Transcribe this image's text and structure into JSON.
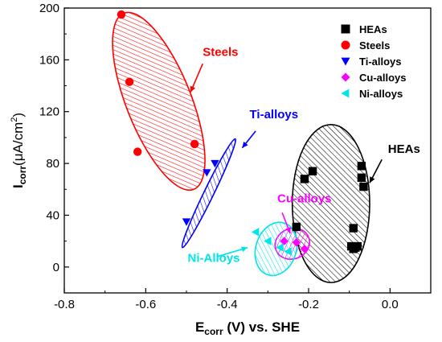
{
  "chart_data": {
    "type": "scatter",
    "xlabel": "E_corr (V) vs. SHE",
    "ylabel": "I_corr (μA/cm²)",
    "xlabel_parts": {
      "main": "E",
      "sub": "corr",
      "rest": " (V) vs. SHE"
    },
    "ylabel_parts": {
      "main": "I",
      "sub": "corr",
      "rest_a": "(μA/cm",
      "sup": "2",
      "rest_b": ")"
    },
    "xlim": [
      -0.8,
      0.1
    ],
    "ylim": [
      -20,
      200
    ],
    "xticks": [
      -0.8,
      -0.6,
      -0.4,
      -0.2,
      0.0
    ],
    "xtick_labels": [
      "-0.8",
      "-0.6",
      "-0.4",
      "-0.2",
      "0.0"
    ],
    "yticks": [
      0,
      40,
      80,
      120,
      160,
      200
    ],
    "ytick_labels": [
      "0",
      "40",
      "80",
      "120",
      "160",
      "200"
    ],
    "legend_position": "top-right",
    "series": [
      {
        "name": "HEAs",
        "marker": "square",
        "color": "#000000",
        "points": [
          [
            -0.19,
            74
          ],
          [
            -0.21,
            68
          ],
          [
            -0.07,
            78
          ],
          [
            -0.07,
            69
          ],
          [
            -0.065,
            62
          ],
          [
            -0.23,
            31
          ],
          [
            -0.09,
            30
          ],
          [
            -0.095,
            16
          ],
          [
            -0.09,
            14
          ],
          [
            -0.085,
            15
          ],
          [
            -0.08,
            16
          ]
        ]
      },
      {
        "name": "Steels",
        "marker": "circle",
        "color": "#ff0000",
        "points": [
          [
            -0.66,
            195
          ],
          [
            -0.64,
            143
          ],
          [
            -0.62,
            89
          ],
          [
            -0.48,
            95
          ]
        ]
      },
      {
        "name": "Ti-alloys",
        "marker": "triangle-down",
        "color": "#0000ff",
        "points": [
          [
            -0.5,
            35
          ],
          [
            -0.45,
            73
          ],
          [
            -0.43,
            80
          ]
        ]
      },
      {
        "name": "Cu-alloys",
        "marker": "diamond",
        "color": "#ff00ff",
        "points": [
          [
            -0.26,
            20
          ],
          [
            -0.23,
            19
          ],
          [
            -0.21,
            14
          ]
        ]
      },
      {
        "name": "Ni-alloys",
        "marker": "triangle-left",
        "color": "#00e5e5",
        "points": [
          [
            -0.33,
            27
          ],
          [
            -0.3,
            20
          ],
          [
            -0.27,
            15
          ],
          [
            -0.25,
            12
          ]
        ]
      }
    ],
    "regions": [
      {
        "label": "Steels",
        "color": "#ff0000",
        "center": [
          -0.568,
          128
        ],
        "anchors": [
          [
            -0.654,
            196
          ],
          [
            -0.482,
            62
          ],
          [
            -0.482,
            127
          ]
        ],
        "text_at": [
          -0.46,
          163
        ],
        "arrow_from": [
          -0.46,
          157
        ],
        "arrow_to": [
          -0.49,
          135
        ]
      },
      {
        "label": "Ti-alloys",
        "color": "#0000ff",
        "center": [
          -0.445,
          57
        ],
        "anchors": [
          [
            -0.38,
            99
          ],
          [
            -0.51,
            15
          ],
          [
            -0.425,
            67
          ]
        ],
        "text_at": [
          -0.345,
          115
        ],
        "arrow_from": [
          -0.33,
          105
        ],
        "arrow_to": [
          -0.363,
          92
        ]
      },
      {
        "label": "HEAs",
        "color": "#000000",
        "center": [
          -0.145,
          49
        ],
        "anchors": [
          [
            -0.145,
            110
          ],
          [
            -0.145,
            -12
          ],
          [
            -0.05,
            49
          ]
        ],
        "text_at": [
          -0.005,
          88
        ],
        "arrow_from": [
          -0.02,
          83
        ],
        "arrow_to": [
          -0.05,
          65
        ]
      },
      {
        "label": "Cu-alloys",
        "color": "#ff00ff",
        "center": [
          -0.24,
          18
        ],
        "anchors": [
          [
            -0.2,
            23
          ],
          [
            -0.28,
            13
          ],
          [
            -0.235,
            30
          ]
        ],
        "text_at": [
          -0.277,
          50
        ],
        "arrow_from": [
          -0.265,
          42
        ],
        "arrow_to": [
          -0.245,
          26
        ]
      },
      {
        "label": "Ni-Alloys",
        "color": "#00e5e5",
        "center": [
          -0.28,
          14
        ],
        "anchors": [
          [
            -0.26,
            34
          ],
          [
            -0.3,
            -6
          ],
          [
            -0.32,
            24
          ]
        ],
        "text_at": [
          -0.497,
          4
        ],
        "arrow_from": [
          -0.425,
          8
        ],
        "arrow_to": [
          -0.35,
          15
        ]
      }
    ]
  }
}
